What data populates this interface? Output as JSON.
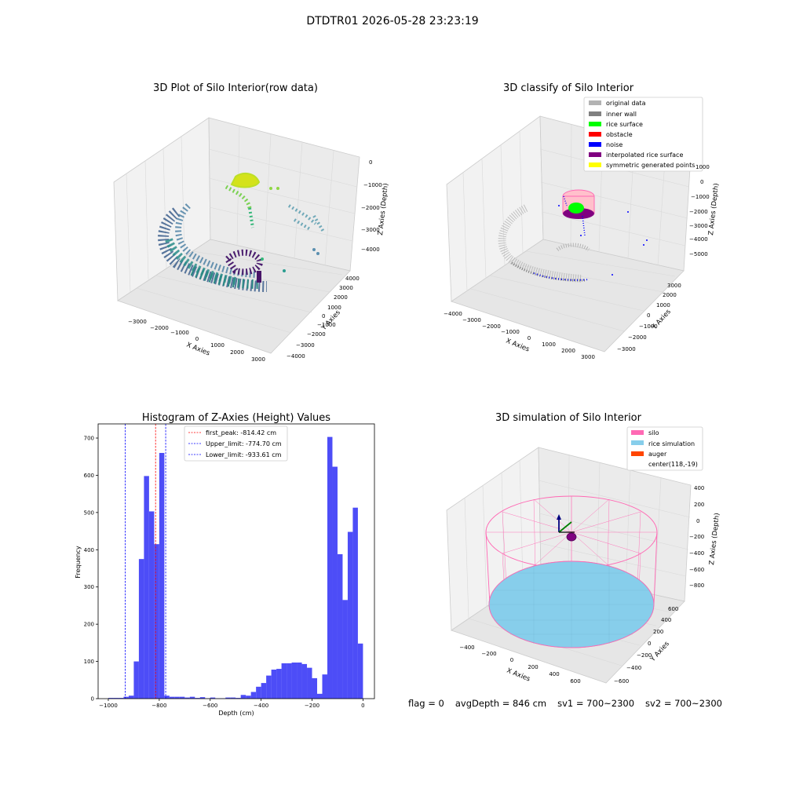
{
  "figure_title": "DTDTR01 2026-05-28 23:23:19",
  "footer": {
    "flag": "flag = 0",
    "avg_depth": "avgDepth = 846 cm",
    "sv1": "sv1 = 700~2300",
    "sv2": "sv2 = 700~2300"
  },
  "chart_data": [
    {
      "type": "scatter",
      "projection": "3d",
      "title": "3D Plot of Silo Interior(row data)",
      "xlabel": "X Axies",
      "ylabel": "Y Axies",
      "zlabel": "Z Axies (Depth)",
      "x_ticks": [
        "−3000",
        "−2000",
        "−1000",
        "0",
        "1000",
        "2000",
        "3000"
      ],
      "y_ticks": [
        "−4000",
        "−3000",
        "−2000",
        "−1000",
        "0",
        "1000",
        "2000",
        "3000",
        "4000"
      ],
      "z_ticks": [
        "−4000",
        "−3000",
        "−2000",
        "−1000",
        "0"
      ],
      "colormap": "viridis"
    },
    {
      "type": "scatter",
      "projection": "3d",
      "title": "3D classify of Silo Interior",
      "xlabel": "X Axies",
      "ylabel": "Y Axies",
      "zlabel": "Z Axies (Depth)",
      "x_ticks": [
        "−4000",
        "−3000",
        "−2000",
        "−1000",
        "0",
        "1000",
        "2000",
        "3000"
      ],
      "y_ticks": [
        "−3000",
        "−2000",
        "−1000",
        "0",
        "1000",
        "2000",
        "3000"
      ],
      "z_ticks": [
        "−5000",
        "−4000",
        "−3000",
        "−2000",
        "−1000",
        "0",
        "1000"
      ],
      "legend": [
        {
          "label": "original data",
          "color": "#b3b3b3"
        },
        {
          "label": "inner wall",
          "color": "#808080"
        },
        {
          "label": "rice surface",
          "color": "#00ff00"
        },
        {
          "label": "obstacle",
          "color": "#ff0000"
        },
        {
          "label": "noise",
          "color": "#0000ff"
        },
        {
          "label": "interpolated rice surface",
          "color": "#800080"
        },
        {
          "label": "symmetric generated points",
          "color": "#ffff00"
        }
      ],
      "legend_position": "top-right"
    },
    {
      "type": "bar",
      "title": "Histogram of Z-Axies (Height) Values",
      "xlabel": "Depth (cm)",
      "ylabel": "Frequency",
      "xlim": [
        -1040,
        45
      ],
      "ylim": [
        0,
        738
      ],
      "x_ticks": [
        -1000,
        -800,
        -600,
        -400,
        -200,
        0
      ],
      "x_tick_labels": [
        "−1000",
        "−800",
        "−600",
        "−400",
        "−200",
        "0"
      ],
      "y_ticks": [
        0,
        100,
        200,
        300,
        400,
        500,
        600,
        700
      ],
      "bar_color": "#4d4df7",
      "bins": [
        {
          "left": -1000,
          "right": -980,
          "value": 2
        },
        {
          "left": -980,
          "right": -960,
          "value": 2
        },
        {
          "left": -960,
          "right": -940,
          "value": 2
        },
        {
          "left": -940,
          "right": -920,
          "value": 5
        },
        {
          "left": -920,
          "right": -900,
          "value": 8
        },
        {
          "left": -900,
          "right": -880,
          "value": 100
        },
        {
          "left": -880,
          "right": -860,
          "value": 375
        },
        {
          "left": -860,
          "right": -840,
          "value": 598
        },
        {
          "left": -840,
          "right": -820,
          "value": 503
        },
        {
          "left": -820,
          "right": -800,
          "value": 415
        },
        {
          "left": -800,
          "right": -780,
          "value": 660
        },
        {
          "left": -780,
          "right": -760,
          "value": 8
        },
        {
          "left": -760,
          "right": -740,
          "value": 5
        },
        {
          "left": -740,
          "right": -720,
          "value": 5
        },
        {
          "left": -720,
          "right": -700,
          "value": 5
        },
        {
          "left": -700,
          "right": -680,
          "value": 3
        },
        {
          "left": -680,
          "right": -660,
          "value": 5
        },
        {
          "left": -660,
          "right": -640,
          "value": 2
        },
        {
          "left": -640,
          "right": -620,
          "value": 4
        },
        {
          "left": -620,
          "right": -600,
          "value": 1
        },
        {
          "left": -600,
          "right": -580,
          "value": 3
        },
        {
          "left": -580,
          "right": -560,
          "value": 1
        },
        {
          "left": -560,
          "right": -540,
          "value": 1
        },
        {
          "left": -540,
          "right": -520,
          "value": 3
        },
        {
          "left": -520,
          "right": -500,
          "value": 3
        },
        {
          "left": -500,
          "right": -480,
          "value": 2
        },
        {
          "left": -480,
          "right": -460,
          "value": 10
        },
        {
          "left": -460,
          "right": -440,
          "value": 8
        },
        {
          "left": -440,
          "right": -420,
          "value": 18
        },
        {
          "left": -420,
          "right": -400,
          "value": 32
        },
        {
          "left": -400,
          "right": -380,
          "value": 42
        },
        {
          "left": -380,
          "right": -360,
          "value": 62
        },
        {
          "left": -360,
          "right": -340,
          "value": 78
        },
        {
          "left": -340,
          "right": -320,
          "value": 80
        },
        {
          "left": -320,
          "right": -300,
          "value": 95
        },
        {
          "left": -300,
          "right": -280,
          "value": 95
        },
        {
          "left": -280,
          "right": -260,
          "value": 97
        },
        {
          "left": -260,
          "right": -240,
          "value": 97
        },
        {
          "left": -240,
          "right": -220,
          "value": 93
        },
        {
          "left": -220,
          "right": -200,
          "value": 83
        },
        {
          "left": -200,
          "right": -180,
          "value": 55
        },
        {
          "left": -180,
          "right": -160,
          "value": 13
        },
        {
          "left": -160,
          "right": -140,
          "value": 65
        },
        {
          "left": -140,
          "right": -120,
          "value": 703
        },
        {
          "left": -120,
          "right": -100,
          "value": 623
        },
        {
          "left": -100,
          "right": -80,
          "value": 388
        },
        {
          "left": -80,
          "right": -60,
          "value": 265
        },
        {
          "left": -60,
          "right": -40,
          "value": 448
        },
        {
          "left": -40,
          "right": -20,
          "value": 513
        },
        {
          "left": -20,
          "right": 0,
          "value": 148
        }
      ],
      "vlines": [
        {
          "label": "first_peak: -814.42 cm",
          "value": -814.42,
          "color": "#ff0000"
        },
        {
          "label": "Upper_limit: -774.70 cm",
          "value": -774.7,
          "color": "#0000ff"
        },
        {
          "label": "Lower_limit: -933.61 cm",
          "value": -933.61,
          "color": "#0000ff"
        }
      ],
      "legend_position": "top-center"
    },
    {
      "type": "scatter",
      "projection": "3d",
      "title": "3D simulation of Silo Interior",
      "xlabel": "X Axies",
      "ylabel": "Y Axies",
      "zlabel": "Z Axies (Depth)",
      "x_ticks": [
        "−400",
        "−200",
        "0",
        "200",
        "400",
        "600"
      ],
      "y_ticks": [
        "−600",
        "−400",
        "−200",
        "0",
        "200",
        "400",
        "600"
      ],
      "z_ticks": [
        "−800",
        "−600",
        "−400",
        "−200",
        "0",
        "200",
        "400"
      ],
      "legend": [
        {
          "label": "silo",
          "color": "#ff69b4"
        },
        {
          "label": "rice simulation",
          "color": "#87ceeb"
        },
        {
          "label": "auger",
          "color": "#ff4500"
        },
        {
          "label": "center(118,-19)",
          "color": ""
        }
      ],
      "legend_position": "top-right"
    }
  ]
}
